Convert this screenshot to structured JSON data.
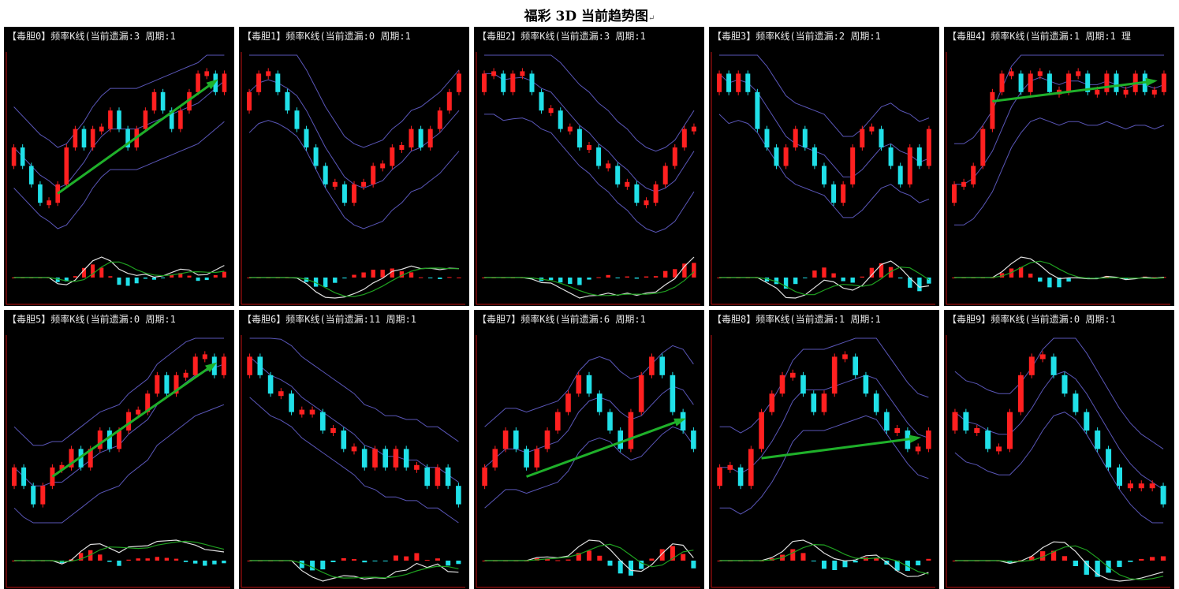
{
  "page": {
    "title": "福彩 3D 当前趋势图",
    "title_mark": "↵"
  },
  "colors": {
    "up_candle": "#ff2020",
    "down_candle": "#20e0e8",
    "band_lines": "#5a56b8",
    "trend_arrow": "#1fb02a",
    "axis": "#c01010",
    "osc_fast": "#e0e0e0",
    "osc_slow": "#1fa020",
    "background": "#000000"
  },
  "chart_data": [
    {
      "type": "candlestick",
      "label": "【毒胆0】频率K线(当前遗漏:3 周期:1",
      "closes": [
        5,
        4,
        3,
        2,
        2,
        3,
        5,
        6,
        5,
        6,
        6,
        7,
        6,
        5,
        6,
        7,
        8,
        7,
        6,
        7,
        8,
        9,
        9,
        8,
        9
      ],
      "arrow": "up"
    },
    {
      "type": "candlestick",
      "label": "【毒胆1】频率K线(当前遗漏:0 周期:1",
      "closes": [
        8,
        9,
        9,
        8,
        7,
        6,
        5,
        4,
        3,
        3,
        2,
        3,
        3,
        4,
        4,
        5,
        5,
        6,
        5,
        6,
        7,
        8,
        9
      ],
      "arrow": null
    },
    {
      "type": "candlestick",
      "label": "【毒胆2】频率K线(当前遗漏:3 周期:1",
      "closes": [
        9,
        9,
        8,
        9,
        9,
        8,
        7,
        7,
        6,
        6,
        5,
        5,
        4,
        4,
        3,
        3,
        2,
        2,
        3,
        4,
        5,
        6,
        6
      ],
      "arrow": null
    },
    {
      "type": "candlestick",
      "label": "【毒胆3】频率K线(当前遗漏:2 周期:1",
      "closes": [
        9,
        8,
        9,
        8,
        6,
        5,
        4,
        5,
        6,
        5,
        4,
        3,
        2,
        3,
        5,
        6,
        6,
        5,
        4,
        3,
        5,
        4,
        6
      ],
      "arrow": null
    },
    {
      "type": "candlestick",
      "label": "【毒胆4】频率K线(当前遗漏:1 周期:1 理",
      "closes": [
        3,
        3,
        4,
        6,
        8,
        9,
        9,
        8,
        9,
        9,
        8,
        8,
        9,
        9,
        8,
        8,
        9,
        8,
        8,
        9,
        8,
        8,
        9
      ],
      "arrow": "up"
    },
    {
      "type": "candlestick",
      "label": "【毒胆5】频率K线(当前遗漏:0 周期:1",
      "closes": [
        3,
        2,
        1,
        2,
        3,
        3,
        4,
        3,
        4,
        5,
        4,
        5,
        6,
        6,
        7,
        8,
        7,
        8,
        8,
        9,
        9,
        8,
        9
      ],
      "arrow": "up"
    },
    {
      "type": "candlestick",
      "label": "【毒胆6】频率K线(当前遗漏:11 周期:1",
      "closes": [
        9,
        8,
        7,
        7,
        6,
        6,
        6,
        5,
        5,
        4,
        4,
        3,
        4,
        3,
        4,
        3,
        3,
        2,
        3,
        2,
        1
      ],
      "arrow": null
    },
    {
      "type": "candlestick",
      "label": "【毒胆7】频率K线(当前遗漏:6 周期:1",
      "closes": [
        3,
        4,
        5,
        4,
        3,
        4,
        5,
        6,
        7,
        8,
        7,
        6,
        5,
        4,
        6,
        8,
        9,
        8,
        6,
        5,
        4
      ],
      "arrow": "up"
    },
    {
      "type": "candlestick",
      "label": "【毒胆8】频率K线(当前遗漏:1 周期:1",
      "closes": [
        3,
        3,
        2,
        4,
        6,
        7,
        8,
        8,
        7,
        6,
        7,
        9,
        9,
        8,
        7,
        6,
        5,
        5,
        4,
        4,
        5
      ],
      "arrow": "up"
    },
    {
      "type": "candlestick",
      "label": "【毒胆9】频率K线(当前遗漏:0 周期:1",
      "closes": [
        6,
        5,
        5,
        4,
        4,
        6,
        8,
        9,
        9,
        8,
        7,
        6,
        5,
        4,
        3,
        2,
        2,
        2,
        2,
        1
      ],
      "arrow": null
    }
  ]
}
